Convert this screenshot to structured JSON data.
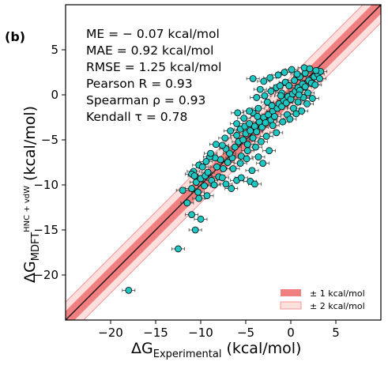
{
  "panel_label": "(b)",
  "stats": [
    "ME = − 0.07 kcal/mol",
    "MAE = 0.92 kcal/mol",
    "RMSE = 1.25 kcal/mol",
    "Pearson R = 0.93",
    "Spearman ρ = 0.93",
    "Kendall τ = 0.78"
  ],
  "axes": {
    "x_label_main": "ΔG",
    "x_label_sub": "Experimental",
    "x_label_unit": "(kcal/mol)",
    "y_label_main": "ΔG",
    "y_label_sub": "MDFT",
    "y_label_sup": "HNC + vdW",
    "y_label_unit": "(kcal/mol)"
  },
  "legend": {
    "band1_label": "± 1 kcal/mol",
    "band2_label": "± 2 kcal/mol"
  },
  "colors": {
    "marker": "#1fc6c2",
    "band1": "#f08080",
    "band2": "#fde0de",
    "diagonal": "#000000"
  },
  "chart_data": {
    "type": "scatter",
    "xlim": [
      -25,
      10
    ],
    "ylim": [
      -25,
      10
    ],
    "x_ticks": [
      "−20",
      "−15",
      "−10",
      "−5",
      "0",
      "5"
    ],
    "x_tick_values": [
      -20,
      -15,
      -10,
      -5,
      0,
      5
    ],
    "y_ticks": [
      "5",
      "0",
      "−5",
      "−10",
      "−15",
      "−20"
    ],
    "y_tick_values": [
      5,
      0,
      -5,
      -10,
      -15,
      -20
    ],
    "diagonal": "y = x",
    "bands": [
      1,
      2
    ],
    "legend_position": "bottom-right",
    "grid": false,
    "points": [
      [
        -18.0,
        -21.7
      ],
      [
        -12.5,
        -17.1
      ],
      [
        -11.0,
        -13.3
      ],
      [
        -10.0,
        -13.8
      ],
      [
        -11.5,
        -12.0
      ],
      [
        -10.6,
        -15.0
      ],
      [
        -10.2,
        -11.5
      ],
      [
        -9.3,
        -11.2
      ],
      [
        -12.0,
        -10.6
      ],
      [
        -11.0,
        -10.4
      ],
      [
        -10.5,
        -9.7
      ],
      [
        -10.0,
        -9.3
      ],
      [
        -9.5,
        -9.0
      ],
      [
        -10.8,
        -8.5
      ],
      [
        -10.2,
        -7.8
      ],
      [
        -9.8,
        -8.0
      ],
      [
        -9.2,
        -8.6
      ],
      [
        -8.8,
        -9.5
      ],
      [
        -8.5,
        -10.0
      ],
      [
        -9.6,
        -10.1
      ],
      [
        -8.0,
        -9.1
      ],
      [
        -7.5,
        -8.2
      ],
      [
        -7.8,
        -7.2
      ],
      [
        -8.4,
        -7.0
      ],
      [
        -9.0,
        -6.9
      ],
      [
        -11.0,
        -8.8
      ],
      [
        -10.7,
        -9.0
      ],
      [
        -7.2,
        -9.9
      ],
      [
        -6.6,
        -10.4
      ],
      [
        -6.0,
        -9.5
      ],
      [
        -5.5,
        -9.2
      ],
      [
        -4.5,
        -9.6
      ],
      [
        -4.0,
        -9.9
      ],
      [
        -7.0,
        -7.5
      ],
      [
        -6.5,
        -7.0
      ],
      [
        -6.8,
        -6.5
      ],
      [
        -7.2,
        -6.0
      ],
      [
        -7.6,
        -5.6
      ],
      [
        -8.3,
        -5.5
      ],
      [
        -6.2,
        -5.8
      ],
      [
        -5.8,
        -5.2
      ],
      [
        -6.0,
        -4.5
      ],
      [
        -5.3,
        -5.0
      ],
      [
        -5.0,
        -4.3
      ],
      [
        -4.8,
        -5.5
      ],
      [
        -4.5,
        -4.0
      ],
      [
        -4.2,
        -4.8
      ],
      [
        -5.6,
        -3.8
      ],
      [
        -5.1,
        -3.5
      ],
      [
        -4.6,
        -3.2
      ],
      [
        -4.0,
        -3.5
      ],
      [
        -3.8,
        -4.1
      ],
      [
        -3.5,
        -3.0
      ],
      [
        -3.2,
        -3.6
      ],
      [
        -3.0,
        -2.5
      ],
      [
        -2.8,
        -3.1
      ],
      [
        -2.5,
        -2.2
      ],
      [
        -2.2,
        -2.8
      ],
      [
        -2.0,
        -1.8
      ],
      [
        -1.8,
        -2.4
      ],
      [
        -1.5,
        -1.5
      ],
      [
        -1.3,
        -1.0
      ],
      [
        -1.0,
        -1.3
      ],
      [
        -0.8,
        -0.6
      ],
      [
        -0.5,
        -0.9
      ],
      [
        -0.3,
        -0.2
      ],
      [
        0.0,
        -0.5
      ],
      [
        0.2,
        0.1
      ],
      [
        0.5,
        0.4
      ],
      [
        0.8,
        0.8
      ],
      [
        1.0,
        0.5
      ],
      [
        1.3,
        1.2
      ],
      [
        1.6,
        0.9
      ],
      [
        2.0,
        1.6
      ],
      [
        2.3,
        1.3
      ],
      [
        2.6,
        2.0
      ],
      [
        3.0,
        2.3
      ],
      [
        3.3,
        2.6
      ],
      [
        2.8,
        2.7
      ],
      [
        3.2,
        1.8
      ],
      [
        -3.6,
        -1.5
      ],
      [
        -4.2,
        -2.0
      ],
      [
        -2.6,
        -0.8
      ],
      [
        -2.2,
        0.4
      ],
      [
        -1.6,
        0.8
      ],
      [
        -1.2,
        1.0
      ],
      [
        -0.6,
        1.4
      ],
      [
        -3.0,
        1.5
      ],
      [
        -4.2,
        1.8
      ],
      [
        -3.8,
        -0.3
      ],
      [
        -1.0,
        0.2
      ],
      [
        -0.2,
        1.0
      ],
      [
        0.4,
        1.6
      ],
      [
        1.0,
        2.0
      ],
      [
        1.6,
        2.4
      ],
      [
        -2.0,
        -3.4
      ],
      [
        -1.6,
        -4.2
      ],
      [
        -0.9,
        -3.0
      ],
      [
        -0.4,
        -2.2
      ],
      [
        0.3,
        -1.5
      ],
      [
        0.8,
        -0.8
      ],
      [
        1.4,
        -0.3
      ],
      [
        1.9,
        0.2
      ],
      [
        -5.5,
        -6.8
      ],
      [
        -4.8,
        -6.2
      ],
      [
        -3.9,
        -5.8
      ],
      [
        -3.3,
        -5.2
      ],
      [
        -2.7,
        -4.6
      ],
      [
        -6.4,
        -8.2
      ],
      [
        -5.6,
        -7.6
      ],
      [
        -4.9,
        -7.1
      ],
      [
        -3.6,
        -6.9
      ],
      [
        -3.1,
        -7.6
      ],
      [
        -2.4,
        -6.2
      ],
      [
        -4.3,
        -8.4
      ],
      [
        -8.9,
        -6.5
      ],
      [
        -8.2,
        -8.0
      ],
      [
        -7.6,
        -9.2
      ],
      [
        -9.4,
        -7.4
      ],
      [
        -10.3,
        -10.8
      ],
      [
        -0.1,
        -2.7
      ],
      [
        0.6,
        -2.1
      ],
      [
        1.2,
        -1.8
      ],
      [
        1.8,
        -1.0
      ],
      [
        2.4,
        -0.4
      ],
      [
        -2.9,
        -0.1
      ],
      [
        -3.4,
        0.6
      ],
      [
        -2.3,
        1.9
      ],
      [
        -1.4,
        2.2
      ],
      [
        -0.7,
        2.5
      ],
      [
        0.1,
        2.8
      ],
      [
        0.7,
        2.3
      ],
      [
        1.5,
        3.0
      ],
      [
        2.1,
        2.9
      ],
      [
        -6.0,
        -3.2
      ],
      [
        -5.2,
        -2.6
      ],
      [
        -4.6,
        -1.8
      ],
      [
        -7.3,
        -4.8
      ],
      [
        -6.7,
        -4.0
      ],
      [
        -5.9,
        -2.0
      ],
      [
        -3.7,
        -2.4
      ],
      [
        -2.1,
        -1.2
      ],
      [
        -1.1,
        -0.1
      ],
      [
        0.9,
        0.0
      ],
      [
        2.7,
        1.1
      ]
    ]
  }
}
